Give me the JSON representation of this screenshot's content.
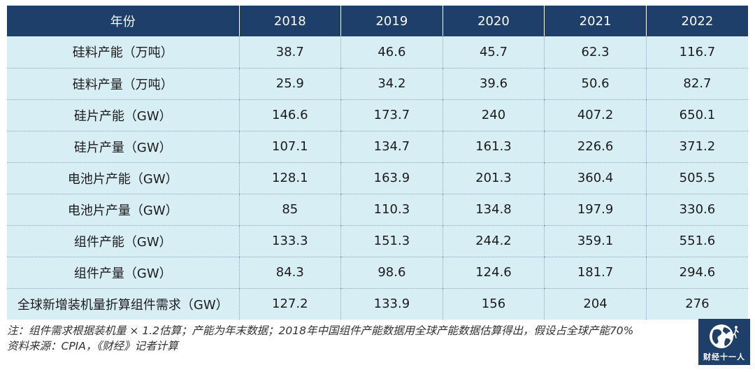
{
  "table": {
    "headers": [
      "年份",
      "2018",
      "2019",
      "2020",
      "2021",
      "2022"
    ],
    "rows": [
      [
        "硅料产能（万吨）",
        "38.7",
        "46.6",
        "45.7",
        "62.3",
        "116.7"
      ],
      [
        "硅料产量（万吨）",
        "25.9",
        "34.2",
        "39.6",
        "50.6",
        "82.7"
      ],
      [
        "硅片产能（GW）",
        "146.6",
        "173.7",
        "240",
        "407.2",
        "650.1"
      ],
      [
        "硅片产量（GW）",
        "107.1",
        "134.7",
        "161.3",
        "226.6",
        "371.2"
      ],
      [
        "电池片产能（GW）",
        "128.1",
        "163.9",
        "201.3",
        "360.4",
        "505.5"
      ],
      [
        "电池片产量（GW）",
        "85",
        "110.3",
        "134.8",
        "197.9",
        "330.6"
      ],
      [
        "组件产能（GW）",
        "133.3",
        "151.3",
        "244.2",
        "359.1",
        "551.6"
      ],
      [
        "组件产量（GW）",
        "84.3",
        "98.6",
        "124.6",
        "181.7",
        "294.6"
      ],
      [
        "全球新增装机量折算组件需求（GW）",
        "127.2",
        "133.9",
        "156",
        "204",
        "276"
      ]
    ]
  },
  "notes": {
    "line1": "注：组件需求根据装机量 × 1.2估算；产能为年末数据；2018年中国组件产能数据用全球产能数据估算得出，假设占全球产能70%",
    "line2": "资料来源：CPIA，《财经》记者计算"
  },
  "logo": {
    "text": "财经十一人",
    "icon": "globe-icon"
  },
  "colors": {
    "header_bg": "#1e3f6a",
    "row_bg": "#d8eef5",
    "divider": "#8aa4b8"
  }
}
